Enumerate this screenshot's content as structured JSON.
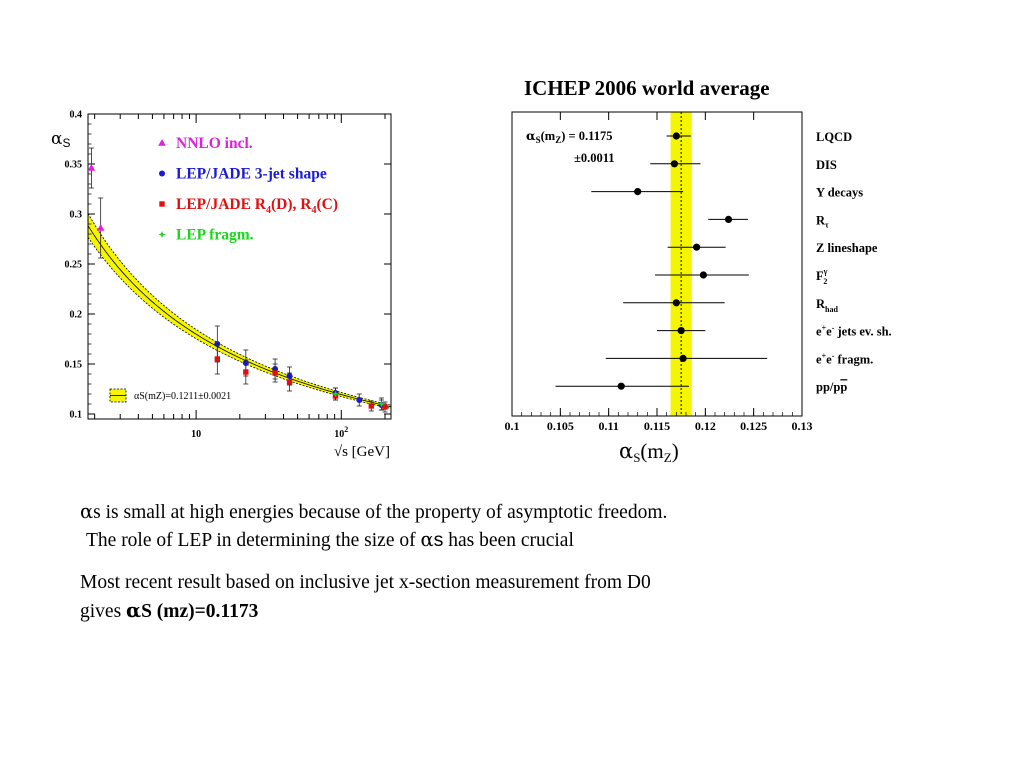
{
  "chart_data": [
    {
      "type": "scatter",
      "title": "",
      "ylabel_symbol": "α",
      "ylabel_sub": "S",
      "xlabel": "√s [GeV]",
      "xscale": "log",
      "xlim": [
        1.8,
        220
      ],
      "ylim": [
        0.095,
        0.4
      ],
      "yticks": [
        "0.1",
        "0.15",
        "0.2",
        "0.25",
        "0.3",
        "0.35",
        "0.4"
      ],
      "ytick_values": [
        0.1,
        0.15,
        0.2,
        0.25,
        0.3,
        0.35,
        0.4
      ],
      "xticks": [
        "10",
        "10"
      ],
      "xtick_sup": [
        "",
        "2"
      ],
      "xtick_values": [
        10,
        100
      ],
      "band_label": "αS(mZ)=0.1211±0.0021",
      "band_color": "#f5f500",
      "legend_position": "top-right",
      "series": [
        {
          "name": "NNLO incl.",
          "color": "#e020e0",
          "marker": "triangle",
          "points": [
            {
              "x": 1.9,
              "y": 0.346,
              "err": 0.02
            },
            {
              "x": 2.2,
              "y": 0.286,
              "err": 0.03
            }
          ]
        },
        {
          "name": "LEP/JADE 3-jet shape",
          "color": "#1a1ad8",
          "marker": "circle",
          "points": [
            {
              "x": 14,
              "y": 0.17,
              "err": 0.018
            },
            {
              "x": 22,
              "y": 0.151,
              "err": 0.013
            },
            {
              "x": 35,
              "y": 0.145,
              "err": 0.01
            },
            {
              "x": 44,
              "y": 0.138,
              "err": 0.009
            },
            {
              "x": 91.2,
              "y": 0.121,
              "err": 0.005
            },
            {
              "x": 133,
              "y": 0.114,
              "err": 0.006
            },
            {
              "x": 189,
              "y": 0.109,
              "err": 0.005
            }
          ]
        },
        {
          "name": "LEP/JADE R4(D), R4(C)",
          "color": "#e01010",
          "marker": "square",
          "points": [
            {
              "x": 14,
              "y": 0.155,
              "err": 0.015
            },
            {
              "x": 22,
              "y": 0.142,
              "err": 0.012
            },
            {
              "x": 35,
              "y": 0.141,
              "err": 0.009
            },
            {
              "x": 44,
              "y": 0.132,
              "err": 0.009
            },
            {
              "x": 91.2,
              "y": 0.118,
              "err": 0.004
            },
            {
              "x": 161,
              "y": 0.108,
              "err": 0.005
            },
            {
              "x": 200,
              "y": 0.107,
              "err": 0.005
            }
          ]
        },
        {
          "name": "LEP fragm.",
          "color": "#18d818",
          "marker": "star",
          "points": [
            {
              "x": 91.2,
              "y": 0.12,
              "err": 0.006
            },
            {
              "x": 189,
              "y": 0.11,
              "err": 0.006
            }
          ]
        }
      ]
    },
    {
      "type": "scatter",
      "title": "ICHEP 2006 world average",
      "xlabel_symbol": "α",
      "xlabel_sub": "S",
      "xlabel_arg": "(m",
      "xlabel_arg_sub": "Z",
      "xlabel_close": ")",
      "xlim": [
        0.1,
        0.13
      ],
      "xticks": [
        "0.1",
        "0.105",
        "0.11",
        "0.115",
        "0.12",
        "0.125",
        "0.13"
      ],
      "xtick_values": [
        0.1,
        0.105,
        0.11,
        0.115,
        0.12,
        0.125,
        0.13
      ],
      "average": 0.1175,
      "average_err": 0.0011,
      "band_color": "#f5f500",
      "annotation_line1": "αS(mZ) = 0.1175",
      "annotation_line2": "±0.0011",
      "measurements": [
        {
          "label": "LQCD",
          "value": 0.117,
          "err_lo": 0.001,
          "err_hi": 0.0015
        },
        {
          "label": "DIS",
          "value": 0.1168,
          "err_lo": 0.0025,
          "err_hi": 0.0027
        },
        {
          "label": "Y decays",
          "value": 0.113,
          "err_lo": 0.0048,
          "err_hi": 0.0047
        },
        {
          "label": "Rτ",
          "value": 0.1224,
          "err_lo": 0.0021,
          "err_hi": 0.002
        },
        {
          "label": "Z lineshape",
          "value": 0.1191,
          "err_lo": 0.003,
          "err_hi": 0.003
        },
        {
          "label": "F2γ",
          "value": 0.1198,
          "err_lo": 0.005,
          "err_hi": 0.0047
        },
        {
          "label": "Rhad",
          "value": 0.117,
          "err_lo": 0.0055,
          "err_hi": 0.005
        },
        {
          "label": "e+e- jets ev. sh.",
          "value": 0.1175,
          "err_lo": 0.0025,
          "err_hi": 0.0025
        },
        {
          "label": "e+e- fragm.",
          "value": 0.1177,
          "err_lo": 0.008,
          "err_hi": 0.0087
        },
        {
          "label": "pp/pp",
          "value": 0.1113,
          "err_lo": 0.0068,
          "err_hi": 0.007
        }
      ]
    }
  ],
  "text": {
    "line1_symbol": "α",
    "line1_rest": "s is small at high energies because of the property of asymptotic freedom.",
    "line2_a": "The role of LEP in determining the size of ",
    "line2_symbol": "α",
    "line2_s": "s",
    "line2_b": " has been crucial",
    "line3": "Most  recent result based on inclusive jet x-section measurement from D0",
    "line4_a": "gives  ",
    "line4_symbol": "α",
    "line4_b": "S (mz)=0.1173"
  }
}
